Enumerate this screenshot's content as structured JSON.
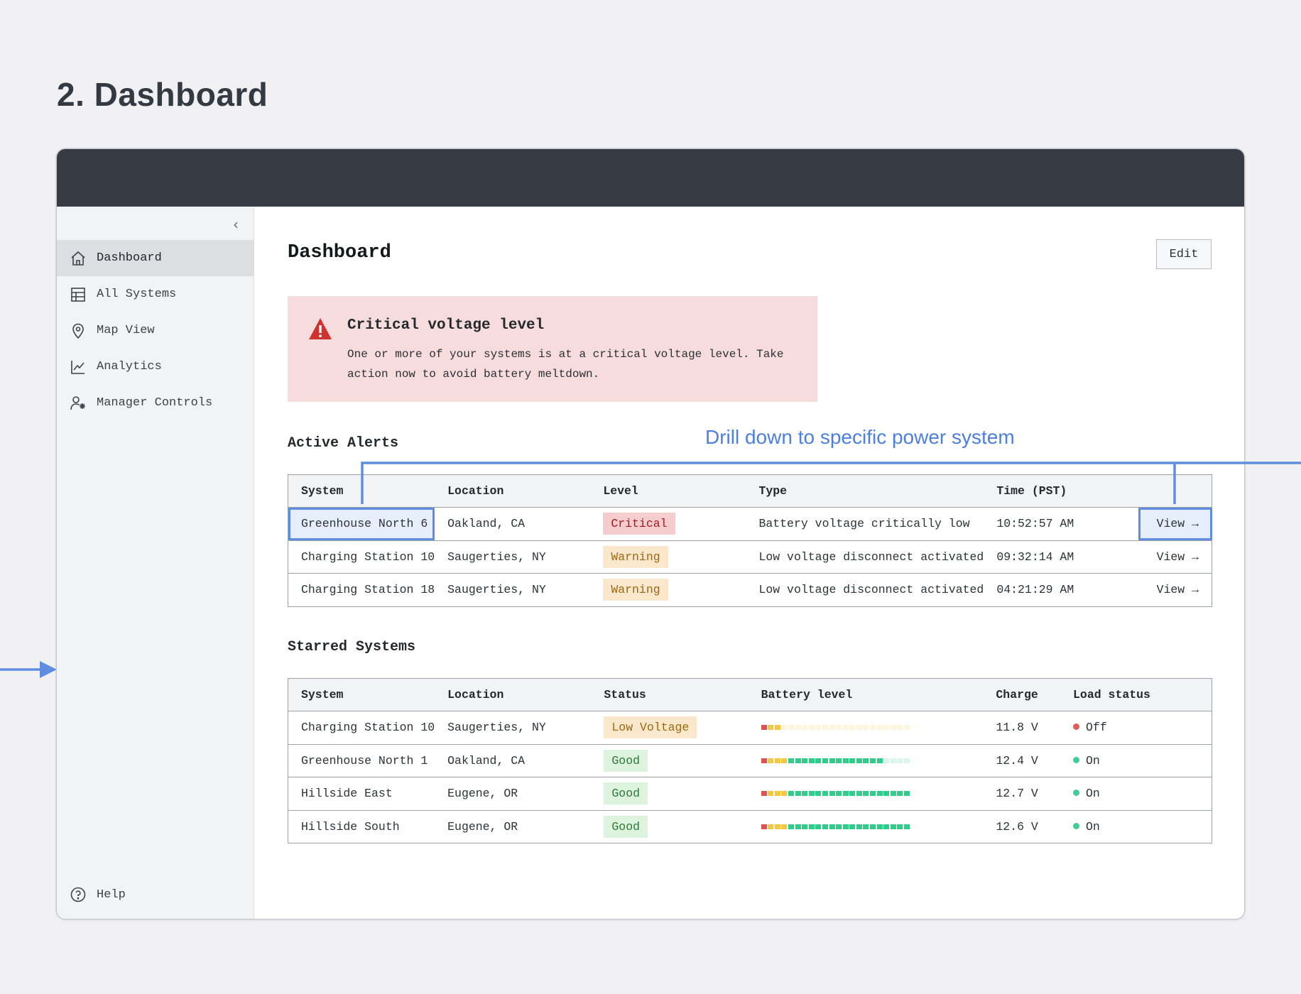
{
  "page": {
    "heading": "2. Dashboard"
  },
  "sidebar": {
    "items": [
      {
        "label": "Dashboard",
        "icon": "home-icon",
        "active": true
      },
      {
        "label": "All Systems",
        "icon": "table-icon"
      },
      {
        "label": "Map View",
        "icon": "map-pin-icon"
      },
      {
        "label": "Analytics",
        "icon": "chart-line-icon"
      },
      {
        "label": "Manager Controls",
        "icon": "user-settings-icon"
      }
    ],
    "help": "Help"
  },
  "main": {
    "title": "Dashboard",
    "edit_label": "Edit"
  },
  "alert": {
    "title": "Critical voltage level",
    "text": "One or more of your systems is at a critical voltage level. Take action now to avoid battery meltdown."
  },
  "active_alerts": {
    "title": "Active Alerts",
    "columns": [
      "System",
      "Location",
      "Level",
      "Type",
      "Time (PST)",
      ""
    ],
    "rows": [
      {
        "system": "Greenhouse North 6",
        "location": "Oakland, CA",
        "level": "Critical",
        "type": "Battery voltage critically low",
        "time": "10:52:57 AM",
        "action": "View →"
      },
      {
        "system": "Charging Station 10",
        "location": "Saugerties, NY",
        "level": "Warning",
        "type": "Low voltage disconnect activated",
        "time": "09:32:14 AM",
        "action": "View →"
      },
      {
        "system": "Charging Station 18",
        "location": "Saugerties, NY",
        "level": "Warning",
        "type": "Low voltage disconnect activated",
        "time": "04:21:29 AM",
        "action": "View →"
      }
    ]
  },
  "starred_systems": {
    "title": "Starred Systems",
    "columns": [
      "System",
      "Location",
      "Status",
      "Battery level",
      "Charge",
      "Load status"
    ],
    "rows": [
      {
        "system": "Charging Station 10",
        "location": "Saugerties, NY",
        "status": "Low Voltage",
        "battery_segments_filled": 3,
        "charge": "11.8 V",
        "load": "Off"
      },
      {
        "system": "Greenhouse North 1",
        "location": "Oakland, CA",
        "status": "Good",
        "battery_segments_filled": 18,
        "charge": "12.4 V",
        "load": "On"
      },
      {
        "system": "Hillside East",
        "location": "Eugene, OR",
        "status": "Good",
        "battery_segments_filled": 22,
        "charge": "12.7 V",
        "load": "On"
      },
      {
        "system": "Hillside South",
        "location": "Eugene, OR",
        "status": "Good",
        "battery_segments_filled": 22,
        "charge": "12.6 V",
        "load": "On"
      }
    ],
    "battery_segments_total": 22
  },
  "annotation": {
    "text": "Drill down to specific power system"
  },
  "colors": {
    "accent_annotation": "#4d7fe0",
    "critical": "#a8191f",
    "warning": "#9a6a12",
    "good": "#2b7a36",
    "battery_red": "#e0514f",
    "battery_yellow": "#f5c842",
    "battery_green": "#2fcc8a",
    "load_off": "#e05a5a",
    "load_on": "#3fcf95"
  }
}
